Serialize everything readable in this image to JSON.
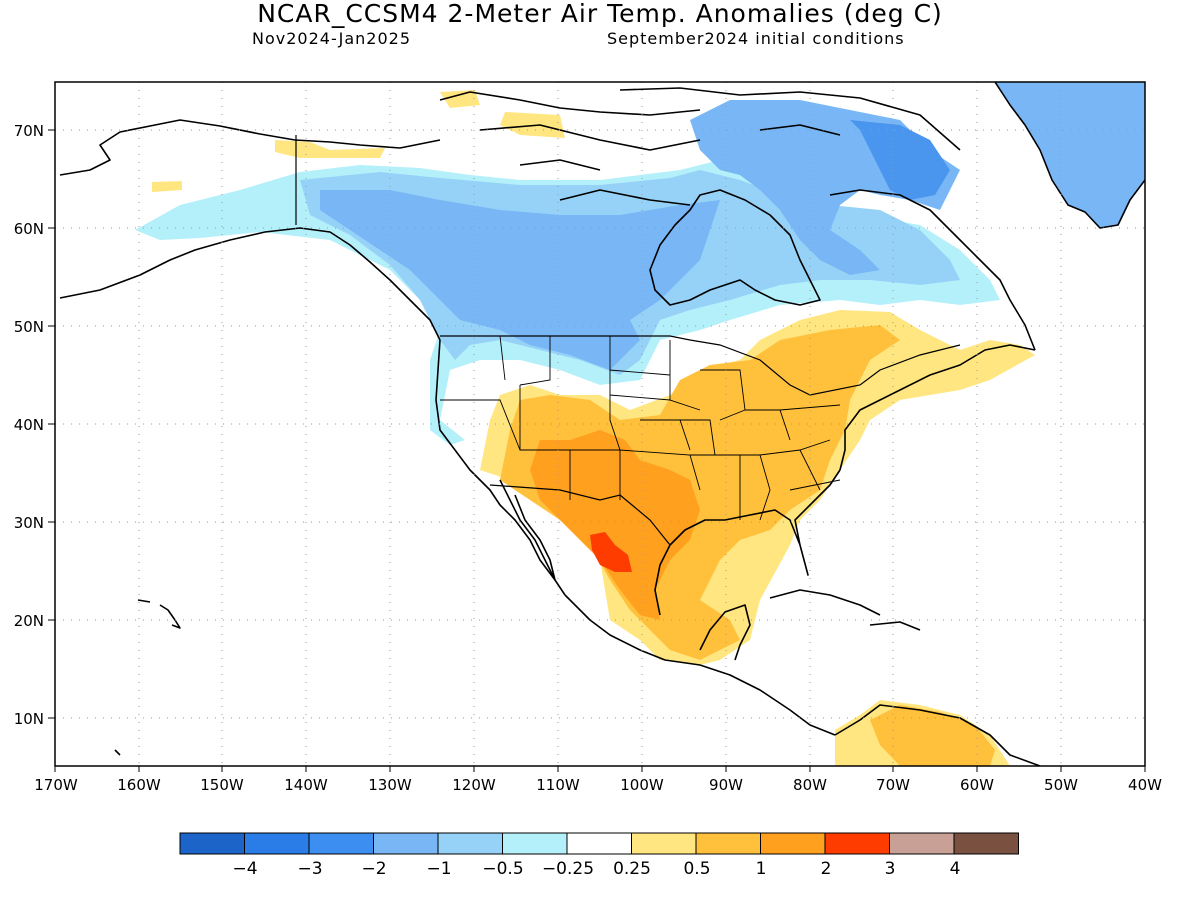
{
  "title": "NCAR_CCSM4 2-Meter Air Temp. Anomalies (deg C)",
  "period": "Nov2024-Jan2025",
  "init_conditions": "September2024 initial conditions",
  "map": {
    "lat_labels": [
      "70N",
      "60N",
      "50N",
      "40N",
      "30N",
      "20N",
      "10N"
    ],
    "lon_labels": [
      "170W",
      "160W",
      "150W",
      "140W",
      "130W",
      "120W",
      "110W",
      "100W",
      "90W",
      "80W",
      "70W",
      "60W",
      "50W",
      "40W"
    ],
    "colors": {
      "neg4": "#1c64c8",
      "neg3": "#2a7de6",
      "neg2": "#4a96ee",
      "neg1": "#78b6f5",
      "neg05": "#96d2f7",
      "neg025": "#b4f0fa",
      "zero": "#ffffff",
      "pos025": "#ffe680",
      "pos05": "#ffc03c",
      "pos1": "#ffa01e",
      "pos2": "#ff6000",
      "pos3": "#c8a096",
      "pos4": "#7a5040"
    }
  },
  "colorbar": {
    "labels": [
      "−4",
      "−3",
      "−2",
      "−1",
      "−0.5",
      "−0.25",
      "0.25",
      "0.5",
      "1",
      "2",
      "3",
      "4"
    ],
    "colors": [
      "#1c64c8",
      "#2a7de6",
      "#3c8ef0",
      "#78b6f5",
      "#96d2f7",
      "#b4f0fa",
      "#ffffff",
      "#ffe680",
      "#ffc03c",
      "#ffa01e",
      "#ff3c00",
      "#c8a096",
      "#7a5040"
    ]
  }
}
